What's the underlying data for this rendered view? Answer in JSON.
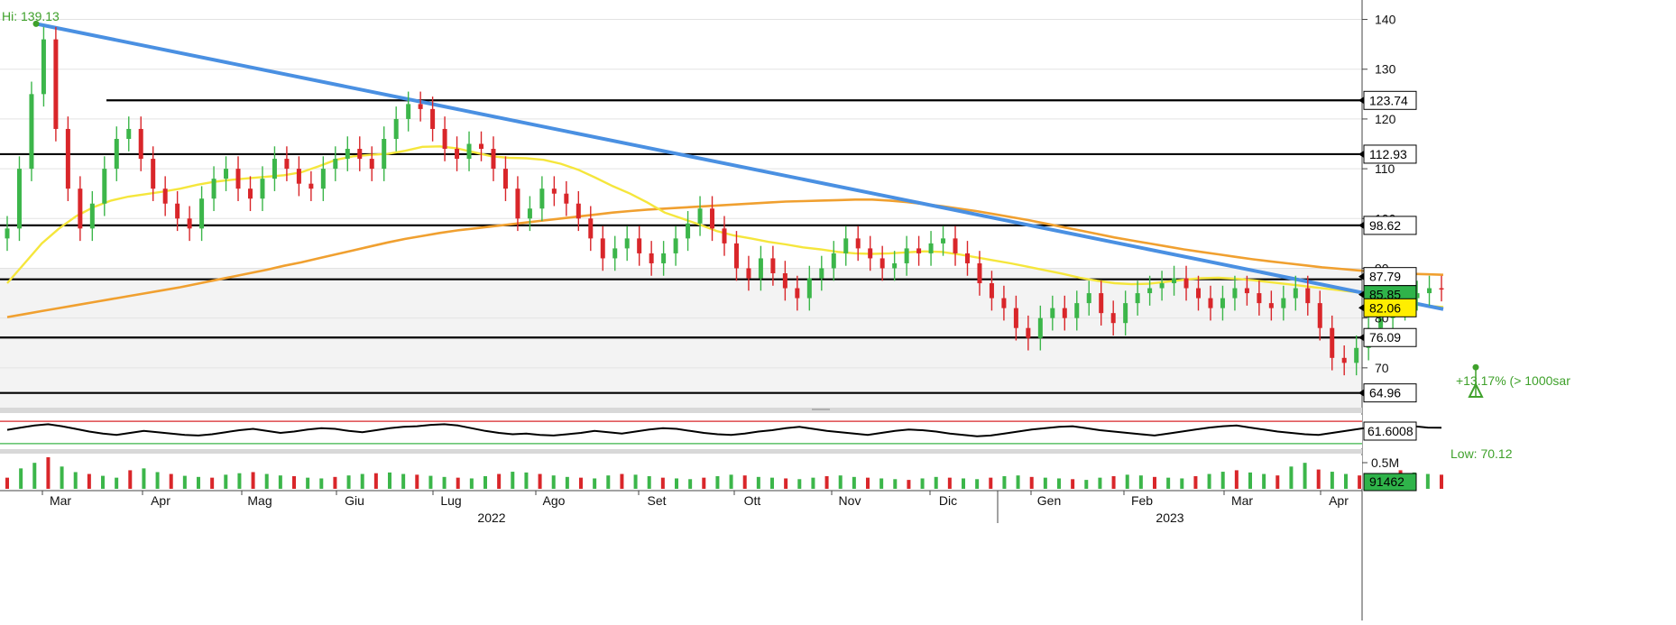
{
  "chart_data": [
    {
      "type": "candlestick",
      "panel": "price",
      "ylim": [
        62,
        143
      ],
      "ticks": [
        70,
        80,
        90,
        100,
        110,
        120,
        130,
        140
      ],
      "x_months": [
        "Mar",
        "Apr",
        "Mag",
        "Giu",
        "Lug",
        "Ago",
        "Set",
        "Ott",
        "Nov",
        "Dic",
        "Gen",
        "Feb",
        "Mar",
        "Apr"
      ],
      "x_years": [
        "2022",
        "2023"
      ],
      "high_annotation": {
        "label": "Hi: 139.13",
        "value": 139.13
      },
      "low_annotation": {
        "label": "Low: 70.12",
        "value": 70.12
      },
      "gain_annotation": {
        "label": "+13.17% (> 1000sar"
      },
      "horizontal_levels": [
        123.74,
        112.93,
        98.62,
        87.79,
        76.09,
        64.96
      ],
      "right_tags": [
        {
          "label": "123.74",
          "value": 123.74,
          "color": "#ffffff"
        },
        {
          "label": "112.93",
          "value": 112.93,
          "color": "#ffffff"
        },
        {
          "label": "98.62",
          "value": 98.62,
          "color": "#ffffff"
        },
        {
          "label": "87.79",
          "value": 87.79,
          "color": "#ffffff"
        },
        {
          "label": "85.85",
          "value": 85.85,
          "color": "#2fb34a"
        },
        {
          "label": "82.06",
          "value": 82.06,
          "color": "#ffee00"
        },
        {
          "label": "76.09",
          "value": 76.09,
          "color": "#ffffff"
        },
        {
          "label": "64.96",
          "value": 64.96,
          "color": "#ffffff"
        }
      ],
      "trendline": {
        "from": 139.13,
        "to": 81.8,
        "color": "#4a90e2"
      },
      "ma_fast": {
        "color": "#f5e63c",
        "values": [
          87.0,
          91.0,
          95.0,
          98.0,
          100.5,
          102.3,
          103.6,
          104.4,
          104.9,
          105.4,
          106.0,
          106.8,
          107.4,
          107.8,
          108.1,
          108.4,
          108.7,
          109.3,
          110.5,
          111.8,
          112.5,
          112.8,
          113.0,
          113.6,
          114.4,
          114.5,
          114.1,
          113.3,
          112.5,
          112.2,
          112.1,
          111.8,
          111.0,
          109.8,
          108.2,
          106.5,
          105.0,
          103.2,
          101.2,
          100.0,
          98.8,
          97.5,
          96.6,
          96.0,
          95.3,
          94.8,
          94.2,
          93.8,
          93.3,
          93.0,
          92.9,
          93.0,
          93.2,
          93.4,
          93.3,
          92.8,
          92.2,
          91.6,
          91.0,
          90.3,
          89.6,
          88.9,
          88.1,
          87.5,
          87.0,
          86.8,
          86.9,
          87.3,
          87.7,
          88.0,
          88.1,
          87.9,
          87.6,
          87.2,
          86.8,
          86.4,
          86.0,
          85.6,
          85.2,
          84.5,
          83.8,
          83.1,
          82.5,
          82.2
        ]
      },
      "ma_slow": {
        "color": "#f0a030",
        "values": [
          80.2,
          80.8,
          81.4,
          82.0,
          82.6,
          83.2,
          83.8,
          84.4,
          85.0,
          85.6,
          86.2,
          86.9,
          87.6,
          88.3,
          89.0,
          89.7,
          90.5,
          91.2,
          92.0,
          92.8,
          93.6,
          94.4,
          95.2,
          95.9,
          96.5,
          97.1,
          97.6,
          98.0,
          98.4,
          98.8,
          99.2,
          99.6,
          100.0,
          100.4,
          100.8,
          101.2,
          101.5,
          101.8,
          102.0,
          102.2,
          102.4,
          102.6,
          102.8,
          103.0,
          103.2,
          103.4,
          103.5,
          103.6,
          103.7,
          103.8,
          103.8,
          103.6,
          103.3,
          102.9,
          102.5,
          102.0,
          101.5,
          100.9,
          100.3,
          99.7,
          99.0,
          98.3,
          97.6,
          96.9,
          96.2,
          95.6,
          95.0,
          94.4,
          93.8,
          93.3,
          92.8,
          92.3,
          91.8,
          91.4,
          91.0,
          90.6,
          90.2,
          89.9,
          89.6,
          89.3,
          89.1,
          88.9,
          88.8,
          88.7
        ]
      },
      "close_values": [
        98.0,
        110.0,
        125.0,
        136.0,
        118.0,
        106.0,
        98.0,
        103.0,
        110.0,
        116.0,
        118.0,
        112.0,
        106.0,
        103.0,
        100.0,
        98.0,
        104.0,
        108.0,
        110.0,
        106.0,
        104.0,
        108.0,
        112.0,
        110.0,
        107.0,
        106.0,
        110.0,
        112.0,
        114.0,
        112.0,
        110.0,
        116.0,
        120.0,
        123.0,
        122.0,
        118.0,
        114.0,
        112.0,
        115.0,
        114.0,
        110.0,
        106.0,
        100.0,
        102.0,
        106.0,
        105.0,
        103.0,
        100.0,
        96.0,
        92.0,
        94.0,
        96.0,
        93.0,
        91.0,
        93.0,
        96.0,
        99.0,
        102.0,
        98.0,
        95.0,
        90.0,
        88.0,
        92.0,
        89.0,
        86.0,
        84.0,
        88.0,
        90.0,
        93.0,
        96.0,
        94.0,
        92.0,
        90.0,
        91.0,
        94.0,
        93.0,
        95.0,
        96.0,
        93.0,
        91.0,
        87.0,
        84.0,
        82.0,
        78.0,
        76.0,
        80.0,
        82.0,
        80.0,
        83.0,
        85.0,
        81.0,
        79.0,
        83.0,
        85.0,
        86.0,
        87.0,
        88.0,
        86.0,
        84.0,
        82.0,
        84.0,
        86.0,
        85.0,
        83.0,
        82.0,
        84.0,
        86.0,
        83.0,
        78.0,
        72.0,
        71.0,
        74.0,
        78.0,
        80.0,
        82.0,
        84.0,
        85.0,
        86.0,
        85.85
      ]
    },
    {
      "type": "line",
      "panel": "oscillator",
      "value_label": "61.6008",
      "upper_level": 70,
      "lower_level": 30,
      "values": [
        55,
        62,
        68,
        72,
        66,
        58,
        50,
        44,
        40,
        46,
        52,
        48,
        44,
        40,
        38,
        42,
        48,
        54,
        58,
        52,
        46,
        50,
        56,
        60,
        58,
        52,
        48,
        54,
        60,
        64,
        66,
        70,
        72,
        68,
        60,
        52,
        46,
        42,
        44,
        40,
        38,
        42,
        46,
        52,
        48,
        44,
        50,
        56,
        60,
        58,
        52,
        46,
        42,
        40,
        44,
        50,
        54,
        60,
        64,
        58,
        52,
        48,
        44,
        40,
        46,
        52,
        56,
        54,
        50,
        44,
        40,
        36,
        38,
        44,
        50,
        56,
        60,
        64,
        66,
        60,
        54,
        50,
        46,
        42,
        38,
        44,
        50,
        56,
        62,
        66,
        68,
        62,
        56,
        50,
        46,
        42,
        40,
        46,
        52,
        58,
        64,
        68,
        70,
        66,
        62,
        61.6
      ]
    },
    {
      "type": "bar",
      "panel": "volume",
      "unit_label": "0.5M",
      "value_label": "91462",
      "values": [
        30,
        55,
        70,
        85,
        60,
        45,
        40,
        35,
        30,
        50,
        55,
        45,
        40,
        35,
        32,
        30,
        38,
        42,
        45,
        40,
        36,
        34,
        30,
        28,
        32,
        36,
        40,
        42,
        44,
        40,
        38,
        35,
        32,
        30,
        28,
        34,
        40,
        46,
        44,
        40,
        36,
        32,
        30,
        28,
        36,
        40,
        38,
        34,
        30,
        28,
        26,
        30,
        34,
        38,
        36,
        32,
        30,
        28,
        26,
        30,
        34,
        36,
        32,
        30,
        28,
        26,
        24,
        28,
        32,
        30,
        28,
        26,
        30,
        34,
        36,
        32,
        30,
        28,
        26,
        24,
        30,
        34,
        38,
        36,
        32,
        30,
        28,
        34,
        40,
        46,
        50,
        44,
        40,
        36,
        60,
        70,
        52,
        46,
        40,
        36,
        30,
        28,
        50,
        44,
        40,
        38
      ]
    }
  ]
}
